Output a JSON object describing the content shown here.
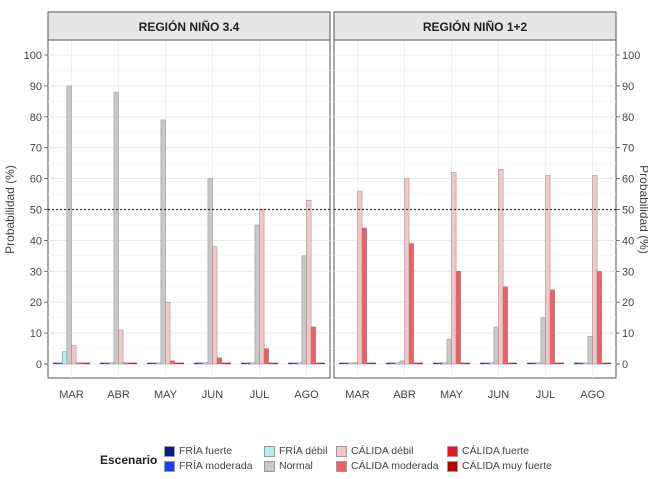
{
  "chart_data": {
    "type": "bar",
    "ylabel_left": "Probabilidad (%)",
    "ylabel_right": "Probabilidad (%)",
    "ylim": [
      0,
      100
    ],
    "yticks": [
      "0",
      "10",
      "20",
      "30",
      "40",
      "50",
      "60",
      "70",
      "80",
      "90",
      "100"
    ],
    "reference_line": 50,
    "grid": true,
    "categories": [
      "MAR",
      "ABR",
      "MAY",
      "JUN",
      "JUL",
      "AGO"
    ],
    "scenarios": [
      {
        "key": "fria_fuerte",
        "name": "FRÍA fuerte",
        "color": "#0a1a8c"
      },
      {
        "key": "fria_moderada",
        "name": "FRÍA moderada",
        "color": "#1e3cff"
      },
      {
        "key": "fria_debil",
        "name": "FRÍA débil",
        "color": "#aef0f0"
      },
      {
        "key": "normal",
        "name": "Normal",
        "color": "#c8c8c8"
      },
      {
        "key": "calida_debil",
        "name": "CÁLIDA débil",
        "color": "#f6c6c6"
      },
      {
        "key": "calida_moderada",
        "name": "CÁLIDA moderada",
        "color": "#f06060"
      },
      {
        "key": "calida_fuerte",
        "name": "CÁLIDA fuerte",
        "color": "#e8141c"
      },
      {
        "key": "calida_muy_fuerte",
        "name": "CÁLIDA muy fuerte",
        "color": "#b80000"
      }
    ],
    "panels": [
      {
        "title": "REGIÓN NIÑO 3.4",
        "values": {
          "fria_fuerte": [
            0,
            0,
            0,
            0,
            0,
            0
          ],
          "fria_moderada": [
            0,
            0,
            0,
            0,
            0,
            0
          ],
          "fria_debil": [
            4,
            0,
            0,
            0,
            0,
            0
          ],
          "normal": [
            90,
            88,
            79,
            60,
            45,
            35
          ],
          "calida_debil": [
            6,
            11,
            20,
            38,
            50,
            53
          ],
          "calida_moderada": [
            0,
            0,
            1,
            2,
            5,
            12
          ],
          "calida_fuerte": [
            0,
            0,
            0,
            0,
            0,
            0
          ],
          "calida_muy_fuerte": [
            0,
            0,
            0,
            0,
            0,
            0
          ]
        }
      },
      {
        "title": "REGIÓN NIÑO 1+2",
        "values": {
          "fria_fuerte": [
            0,
            0,
            0,
            0,
            0,
            0
          ],
          "fria_moderada": [
            0,
            0,
            0,
            0,
            0,
            0
          ],
          "fria_debil": [
            0,
            0,
            0,
            0,
            0,
            0
          ],
          "normal": [
            0,
            1,
            8,
            12,
            15,
            9
          ],
          "calida_debil": [
            56,
            60,
            62,
            63,
            61,
            61
          ],
          "calida_moderada": [
            44,
            39,
            30,
            25,
            24,
            30
          ],
          "calida_fuerte": [
            0,
            0,
            0,
            0,
            0,
            0
          ],
          "calida_muy_fuerte": [
            0,
            0,
            0,
            0,
            0,
            0
          ]
        }
      }
    ],
    "legend": {
      "title": "Escenario",
      "position": "bottom"
    }
  }
}
